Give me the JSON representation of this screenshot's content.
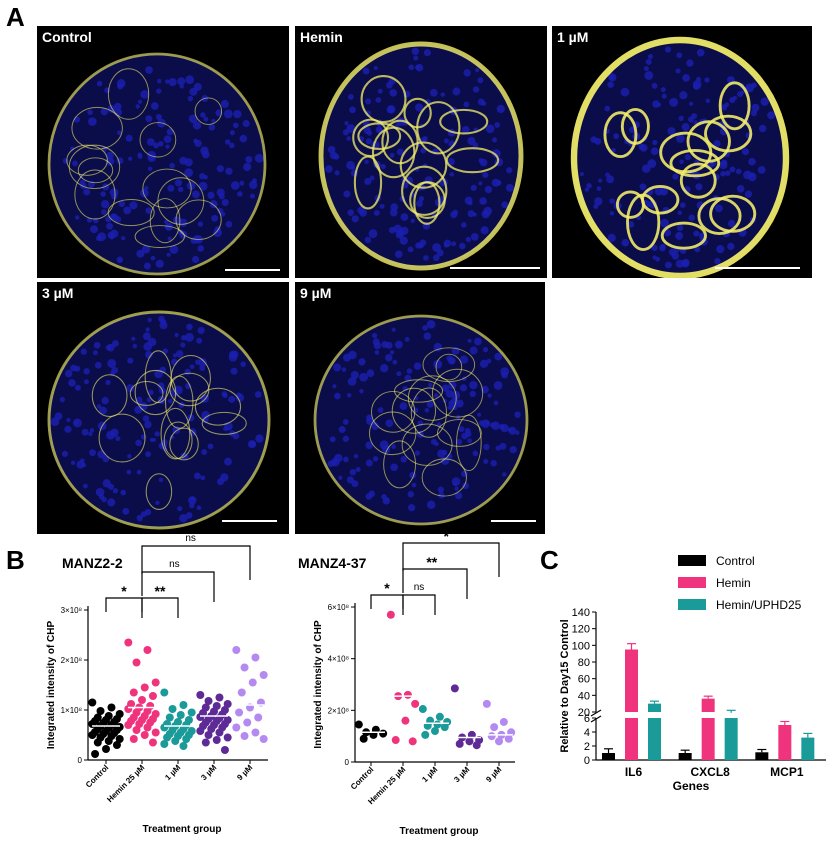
{
  "panel_letters": {
    "a": "A",
    "b": "B",
    "c": "C"
  },
  "micrographs": [
    {
      "label": "Control"
    },
    {
      "label": "Hemin"
    },
    {
      "label": "1 µM"
    },
    {
      "label": "3 µM"
    },
    {
      "label": "9 µM"
    }
  ],
  "colors": {
    "dapi": "#1a1fb0",
    "chp": "#f2ee6a",
    "background": "#000000"
  },
  "chart_data": [
    {
      "type": "scatter",
      "title": "MANZ2-2",
      "xlabel": "Treatment group",
      "ylabel": "Integrated intensity of CHP",
      "categories": [
        "Control",
        "Hemin 25 µM",
        "1 µM",
        "3 µM",
        "9 µM"
      ],
      "yticks": [
        {
          "v": 0,
          "t": "0"
        },
        {
          "v": 1,
          "t": "1×10⁸"
        },
        {
          "v": 2,
          "t": "2×10⁸"
        },
        {
          "v": 3,
          "t": "3×10⁸"
        }
      ],
      "ylim": [
        0,
        3
      ],
      "yunit": "×10⁸",
      "colors": [
        "#000000",
        "#f0337d",
        "#1a9a98",
        "#5e2a96",
        "#b48af0"
      ],
      "points": [
        [
          1.15,
          1.05,
          0.98,
          0.92,
          0.88,
          0.85,
          0.82,
          0.8,
          0.78,
          0.76,
          0.74,
          0.72,
          0.7,
          0.68,
          0.66,
          0.64,
          0.62,
          0.6,
          0.58,
          0.56,
          0.54,
          0.52,
          0.5,
          0.48,
          0.45,
          0.42,
          0.38,
          0.35,
          0.3,
          0.22,
          0.12
        ],
        [
          2.35,
          2.2,
          1.95,
          1.55,
          1.45,
          1.35,
          1.28,
          1.2,
          1.12,
          1.08,
          1.05,
          1.02,
          0.98,
          0.95,
          0.92,
          0.88,
          0.85,
          0.82,
          0.8,
          0.78,
          0.75,
          0.72,
          0.7,
          0.65,
          0.6,
          0.55,
          0.5,
          0.42,
          0.35
        ],
        [
          1.35,
          1.1,
          1.02,
          0.95,
          0.9,
          0.85,
          0.8,
          0.76,
          0.72,
          0.7,
          0.68,
          0.65,
          0.62,
          0.6,
          0.58,
          0.55,
          0.52,
          0.5,
          0.48,
          0.45,
          0.42,
          0.38,
          0.32,
          0.28
        ],
        [
          1.3,
          1.25,
          1.18,
          1.12,
          1.08,
          1.05,
          1.0,
          0.97,
          0.94,
          0.91,
          0.88,
          0.86,
          0.84,
          0.82,
          0.8,
          0.78,
          0.75,
          0.72,
          0.7,
          0.68,
          0.65,
          0.62,
          0.58,
          0.55,
          0.5,
          0.45,
          0.4,
          0.35,
          0.2
        ],
        [
          2.2,
          2.05,
          1.85,
          1.7,
          1.55,
          1.35,
          1.15,
          1.05,
          0.95,
          0.85,
          0.75,
          0.65,
          0.55,
          0.48,
          0.42
        ]
      ],
      "means": [
        0.68,
        1.05,
        0.68,
        0.88,
        1.1
      ],
      "brackets": [
        {
          "from": 0,
          "to": 1,
          "label": "*",
          "level": 0
        },
        {
          "from": 1,
          "to": 2,
          "label": "**",
          "level": 0
        },
        {
          "from": 1,
          "to": 3,
          "label": "ns",
          "level": 1
        },
        {
          "from": 1,
          "to": 4,
          "label": "ns",
          "level": 2
        }
      ]
    },
    {
      "type": "scatter",
      "title": "MANZ4-37",
      "xlabel": "Treatment group",
      "ylabel": "Integrated intensity of CHP",
      "categories": [
        "Control",
        "Hemin 25 µM",
        "1 µM",
        "3 µM",
        "9 µM"
      ],
      "yticks": [
        {
          "v": 0,
          "t": "0"
        },
        {
          "v": 2,
          "t": "2×10⁸"
        },
        {
          "v": 4,
          "t": "4×10⁸"
        },
        {
          "v": 6,
          "t": "6×10⁸"
        }
      ],
      "ylim": [
        0,
        6
      ],
      "yunit": "×10⁸",
      "colors": [
        "#000000",
        "#f0337d",
        "#1a9a98",
        "#5e2a96",
        "#b48af0"
      ],
      "points": [
        [
          1.45,
          1.25,
          1.15,
          1.1,
          1.05,
          0.9
        ],
        [
          5.7,
          2.6,
          2.55,
          2.25,
          1.6,
          0.85,
          0.8
        ],
        [
          2.05,
          1.75,
          1.6,
          1.55,
          1.45,
          1.4,
          1.35,
          1.2,
          1.05
        ],
        [
          2.85,
          1.05,
          0.95,
          0.85,
          0.8,
          0.7,
          0.65
        ],
        [
          2.25,
          1.55,
          1.35,
          1.15,
          1.05,
          1.0,
          0.9,
          0.8
        ]
      ],
      "means": [
        1.15,
        2.55,
        1.5,
        0.95,
        1.05
      ],
      "brackets": [
        {
          "from": 0,
          "to": 1,
          "label": "*",
          "level": 0
        },
        {
          "from": 1,
          "to": 2,
          "label": "ns",
          "level": 0
        },
        {
          "from": 1,
          "to": 3,
          "label": "**",
          "level": 1
        },
        {
          "from": 1,
          "to": 4,
          "label": "*",
          "level": 2
        }
      ]
    },
    {
      "type": "bar",
      "xlabel": "Genes",
      "ylabel": "Relative to Day15 Control",
      "categories": [
        "IL6",
        "CXCL8",
        "MCP1"
      ],
      "y_axis_break": true,
      "yticks_upper": [
        20,
        40,
        60,
        80,
        100,
        120,
        140
      ],
      "yticks_lower": [
        0,
        2,
        4,
        6
      ],
      "series": [
        {
          "name": "Control",
          "color": "#000000",
          "values": [
            1.0,
            1.0,
            1.1
          ],
          "errors": [
            0.6,
            0.4,
            0.4
          ]
        },
        {
          "name": "Hemin",
          "color": "#f0337d",
          "values": [
            95,
            36,
            5.0
          ],
          "errors": [
            7,
            3,
            0.5
          ]
        },
        {
          "name": "Hemin/UPHD25",
          "color": "#1a9a98",
          "values": [
            30,
            19,
            3.2
          ],
          "errors": [
            3,
            3,
            0.6
          ]
        }
      ]
    }
  ]
}
